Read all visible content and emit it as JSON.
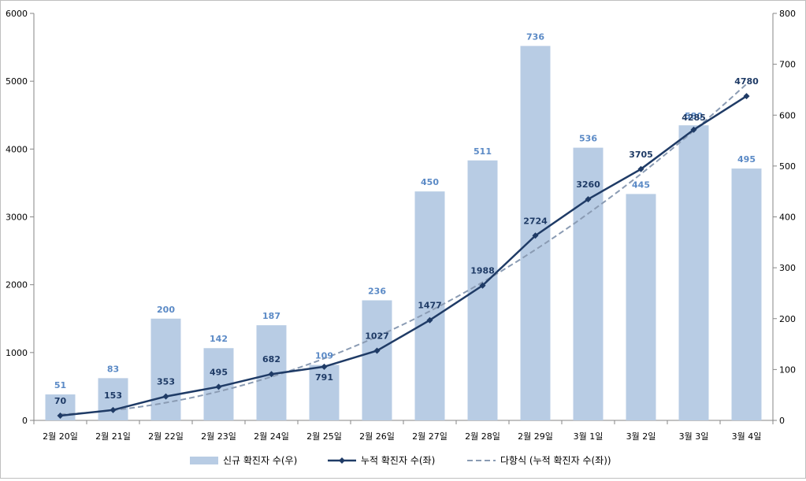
{
  "chart_data": {
    "type": "bar+line",
    "categories": [
      "2월 20일",
      "2월 21일",
      "2월 22일",
      "2월 23일",
      "2월 24일",
      "2월 25일",
      "2월 26일",
      "2월 27일",
      "2월 28일",
      "2월 29일",
      "3월 1일",
      "3월 2일",
      "3월 3일",
      "3월 4일"
    ],
    "series": [
      {
        "name": "신규 확진자 수(우)",
        "type": "bar",
        "axis": "right",
        "values": [
          51,
          83,
          200,
          142,
          187,
          109,
          236,
          450,
          511,
          736,
          536,
          445,
          580,
          495
        ],
        "color": "#b8cce4"
      },
      {
        "name": "누적 확진자 수(좌)",
        "type": "line",
        "axis": "left",
        "values": [
          70,
          153,
          353,
          495,
          682,
          791,
          1027,
          1477,
          1988,
          2724,
          3260,
          3705,
          4285,
          4780
        ],
        "color": "#1f3b66"
      },
      {
        "name": "다항식 (누적 확진자 수(좌))",
        "type": "trendline",
        "axis": "left",
        "dashed": true,
        "color": "#8a9bb3"
      }
    ],
    "y_left": {
      "min": 0,
      "max": 6000,
      "ticks": [
        0,
        1000,
        2000,
        3000,
        4000,
        5000,
        6000
      ]
    },
    "y_right": {
      "min": 0,
      "max": 800,
      "ticks": [
        0,
        100,
        200,
        300,
        400,
        500,
        600,
        700,
        800
      ]
    },
    "grid": false,
    "legend": "bottom"
  }
}
